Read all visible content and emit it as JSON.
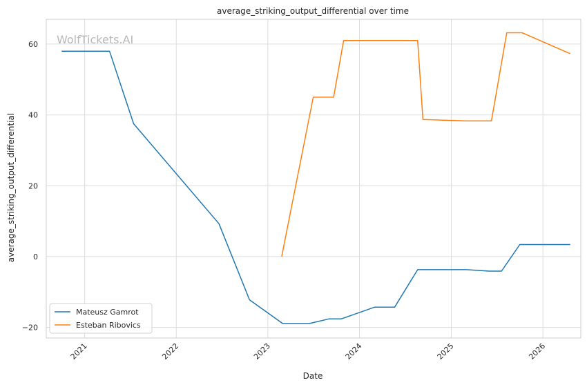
{
  "chart_data": {
    "type": "line",
    "title": "average_striking_output_differential over time",
    "xlabel": "Date",
    "ylabel": "average_striking_output_differential",
    "watermark": "WolfTickets.AI",
    "xlim": [
      "2020-08-01",
      "2026-06-01"
    ],
    "ylim": [
      -23,
      67
    ],
    "x_ticks": [
      "2021",
      "2022",
      "2023",
      "2024",
      "2025",
      "2026"
    ],
    "y_ticks": [
      -20,
      0,
      20,
      40,
      60
    ],
    "grid": true,
    "legend": "lower-left",
    "series": [
      {
        "name": "Mateusz Gamrot",
        "color": "#1f77b4",
        "points": [
          [
            "2020-10-01",
            58.0
          ],
          [
            "2021-04-10",
            58.0
          ],
          [
            "2021-07-15",
            37.5
          ],
          [
            "2022-06-20",
            9.3
          ],
          [
            "2022-10-20",
            -12.2
          ],
          [
            "2023-03-01",
            -18.9
          ],
          [
            "2023-06-15",
            -18.9
          ],
          [
            "2023-09-01",
            -17.6
          ],
          [
            "2023-10-20",
            -17.6
          ],
          [
            "2024-03-01",
            -14.3
          ],
          [
            "2024-05-20",
            -14.3
          ],
          [
            "2024-08-20",
            -3.7
          ],
          [
            "2025-03-01",
            -3.7
          ],
          [
            "2025-06-01",
            -4.1
          ],
          [
            "2025-07-20",
            -4.1
          ],
          [
            "2025-10-01",
            3.4
          ],
          [
            "2026-04-20",
            3.4
          ]
        ]
      },
      {
        "name": "Esteban Ribovics",
        "color": "#ff7f0e",
        "points": [
          [
            "2023-02-25",
            0.0
          ],
          [
            "2023-07-01",
            45.0
          ],
          [
            "2023-09-20",
            45.0
          ],
          [
            "2023-10-30",
            61.0
          ],
          [
            "2024-08-20",
            61.0
          ],
          [
            "2024-09-10",
            38.7
          ],
          [
            "2025-03-01",
            38.3
          ],
          [
            "2025-06-10",
            38.3
          ],
          [
            "2025-08-10",
            63.2
          ],
          [
            "2025-10-10",
            63.2
          ],
          [
            "2026-04-20",
            57.3
          ]
        ]
      }
    ]
  }
}
